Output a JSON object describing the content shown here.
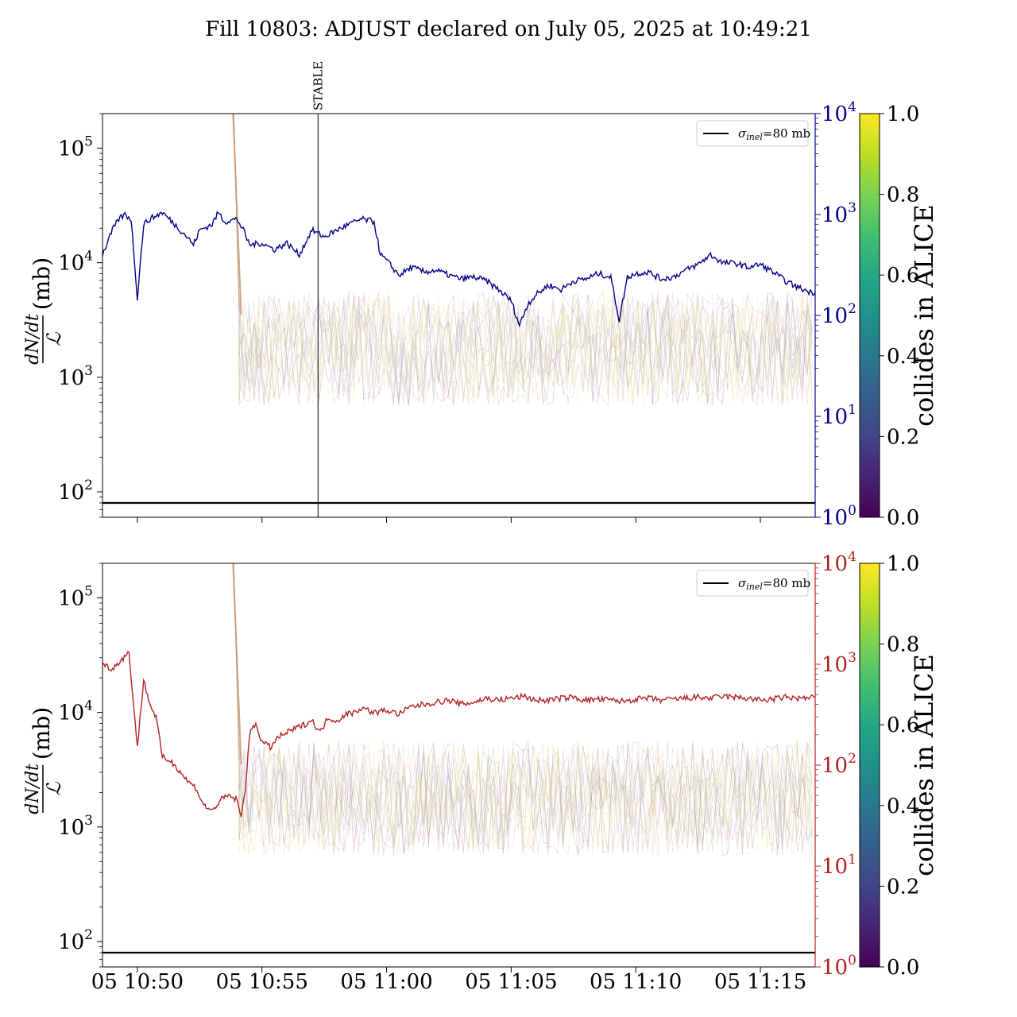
{
  "title": "Fill 10803: ADJUST declared on July 05, 2025 at 10:49:21",
  "colors": {
    "panel1_series": "#00008b",
    "panel2_series": "#b22222",
    "axis": "#000000",
    "bunch_band": "#c8b48c"
  },
  "chart_data": [
    {
      "type": "line",
      "panel": "top",
      "ylabel_left": "dN/dt / ℒ (mb)",
      "yscale_left": "log",
      "ylim_left": [
        60,
        200000
      ],
      "yticks_left": [
        {
          "base": "10",
          "exp": "2",
          "value": 100
        },
        {
          "base": "10",
          "exp": "3",
          "value": 1000
        },
        {
          "base": "10",
          "exp": "4",
          "value": 10000
        },
        {
          "base": "10",
          "exp": "5",
          "value": 100000
        }
      ],
      "yscale_right": "log",
      "ylim_right": [
        1,
        10000
      ],
      "yticks_right": [
        {
          "base": "10",
          "exp": "0",
          "value": 1
        },
        {
          "base": "10",
          "exp": "1",
          "value": 10
        },
        {
          "base": "10",
          "exp": "2",
          "value": 100
        },
        {
          "base": "10",
          "exp": "3",
          "value": 1000
        },
        {
          "base": "10",
          "exp": "4",
          "value": 10000
        }
      ],
      "right_axis_color": "#00008b",
      "xlim_minutes": [
        "10:48.6",
        "11:17.2"
      ],
      "reference_line": {
        "label": "σ_inel=80 mb",
        "value": 80
      },
      "vertical_marker": {
        "label": "STABLE",
        "time": "10:57:15"
      },
      "legend": {
        "label": "σinel=80 mb",
        "sub": "inel",
        "loc": "upper right"
      },
      "series": [
        {
          "axis": "right",
          "color": "#00008b",
          "x": [
            "10:48:36",
            "10:49:00",
            "10:49:15",
            "10:49:30",
            "10:49:45",
            "10:50:00",
            "10:50:15",
            "10:50:30",
            "10:51:00",
            "10:51:30",
            "10:52:00",
            "10:52:15",
            "10:52:30",
            "10:53:00",
            "10:53:15",
            "10:53:30",
            "10:54:00",
            "10:54:15",
            "10:54:30",
            "10:55:00",
            "10:55:30",
            "10:56:00",
            "10:56:30",
            "10:57:00",
            "10:57:30",
            "10:58:00",
            "10:58:30",
            "10:59:00",
            "10:59:30",
            "10:59:45",
            "11:00:00",
            "11:00:30",
            "11:01:00",
            "11:01:30",
            "11:02:00",
            "11:02:30",
            "11:03:00",
            "11:03:30",
            "11:04:00",
            "11:04:30",
            "11:05:00",
            "11:05:20",
            "11:05:40",
            "11:06:00",
            "11:06:30",
            "11:07:00",
            "11:07:30",
            "11:08:00",
            "11:08:30",
            "11:09:00",
            "11:09:20",
            "11:09:40",
            "11:10:00",
            "11:10:30",
            "11:11:00",
            "11:11:30",
            "11:12:00",
            "11:12:30",
            "11:13:00",
            "11:13:30",
            "11:14:00",
            "11:14:30",
            "11:15:00",
            "11:15:30",
            "11:16:00",
            "11:16:30",
            "11:17:00",
            "11:17:12"
          ],
          "y": [
            400,
            700,
            900,
            1000,
            900,
            150,
            800,
            900,
            1050,
            800,
            600,
            500,
            700,
            800,
            1050,
            850,
            900,
            700,
            500,
            520,
            450,
            520,
            400,
            700,
            600,
            700,
            800,
            900,
            850,
            400,
            350,
            250,
            300,
            270,
            280,
            250,
            230,
            240,
            220,
            180,
            140,
            80,
            130,
            160,
            200,
            180,
            220,
            230,
            260,
            240,
            90,
            240,
            260,
            270,
            230,
            240,
            280,
            320,
            400,
            330,
            330,
            300,
            320,
            270,
            220,
            190,
            170,
            170
          ]
        }
      ]
    },
    {
      "type": "line",
      "panel": "bottom",
      "ylabel_left": "dN/dt / ℒ (mb)",
      "yscale_left": "log",
      "ylim_left": [
        60,
        200000
      ],
      "yticks_left": [
        {
          "base": "10",
          "exp": "2",
          "value": 100
        },
        {
          "base": "10",
          "exp": "3",
          "value": 1000
        },
        {
          "base": "10",
          "exp": "4",
          "value": 10000
        },
        {
          "base": "10",
          "exp": "5",
          "value": 100000
        }
      ],
      "yscale_right": "log",
      "ylim_right": [
        1,
        10000
      ],
      "yticks_right": [
        {
          "base": "10",
          "exp": "0",
          "value": 1
        },
        {
          "base": "10",
          "exp": "1",
          "value": 10
        },
        {
          "base": "10",
          "exp": "2",
          "value": 100
        },
        {
          "base": "10",
          "exp": "3",
          "value": 1000
        },
        {
          "base": "10",
          "exp": "4",
          "value": 10000
        }
      ],
      "right_axis_color": "#b22222",
      "xticks": [
        "05 10:50",
        "05 10:55",
        "05 11:00",
        "05 11:05",
        "05 11:10",
        "05 11:15"
      ],
      "reference_line": {
        "label": "σ_inel=80 mb",
        "value": 80
      },
      "legend": {
        "label": "σinel=80 mb",
        "sub": "inel",
        "loc": "upper right"
      },
      "series": [
        {
          "axis": "right",
          "color": "#b22222",
          "x": [
            "10:48:36",
            "10:49:00",
            "10:49:20",
            "10:49:40",
            "10:50:00",
            "10:50:15",
            "10:50:30",
            "10:50:45",
            "10:51:00",
            "10:51:20",
            "10:51:40",
            "10:52:00",
            "10:52:20",
            "10:52:40",
            "10:53:00",
            "10:53:20",
            "10:53:40",
            "10:54:00",
            "10:54:10",
            "10:54:20",
            "10:54:30",
            "10:54:45",
            "10:55:00",
            "10:55:20",
            "10:55:40",
            "10:56:00",
            "10:56:20",
            "10:56:40",
            "10:57:00",
            "10:57:20",
            "10:57:40",
            "10:58:00",
            "10:58:20",
            "10:58:40",
            "10:59:00",
            "10:59:30",
            "11:00:00",
            "11:00:30",
            "11:01:00",
            "11:01:30",
            "11:02:00",
            "11:02:30",
            "11:03:00",
            "11:03:30",
            "11:04:00",
            "11:04:30",
            "11:05:00",
            "11:05:30",
            "11:06:00",
            "11:06:30",
            "11:07:00",
            "11:07:30",
            "11:08:00",
            "11:08:30",
            "11:09:00",
            "11:09:30",
            "11:10:00",
            "11:10:30",
            "11:11:00",
            "11:11:30",
            "11:12:00",
            "11:12:30",
            "11:13:00",
            "11:13:30",
            "11:14:00",
            "11:14:30",
            "11:15:00",
            "11:15:30",
            "11:16:00",
            "11:16:30",
            "11:17:00",
            "11:17:12"
          ],
          "y": [
            1000,
            900,
            1100,
            1300,
            150,
            700,
            400,
            300,
            120,
            110,
            90,
            70,
            60,
            40,
            35,
            45,
            50,
            45,
            30,
            60,
            200,
            260,
            170,
            150,
            190,
            210,
            230,
            250,
            280,
            210,
            300,
            270,
            320,
            330,
            370,
            330,
            350,
            320,
            380,
            400,
            420,
            440,
            400,
            420,
            460,
            440,
            460,
            480,
            440,
            440,
            460,
            470,
            440,
            450,
            440,
            430,
            450,
            460,
            440,
            450,
            460,
            470,
            460,
            480,
            470,
            460,
            440,
            450,
            470,
            460,
            460,
            480
          ]
        }
      ]
    }
  ],
  "colorbars": [
    {
      "label": "collides in ALICE",
      "cmap": "viridis",
      "range": [
        0.0,
        1.0
      ],
      "ticks": [
        "0.0",
        "0.2",
        "0.4",
        "0.6",
        "0.8",
        "1.0"
      ]
    },
    {
      "label": "collides in ALICE",
      "cmap": "viridis",
      "range": [
        0.0,
        1.0
      ],
      "ticks": [
        "0.0",
        "0.2",
        "0.4",
        "0.6",
        "0.8",
        "1.0"
      ]
    }
  ]
}
